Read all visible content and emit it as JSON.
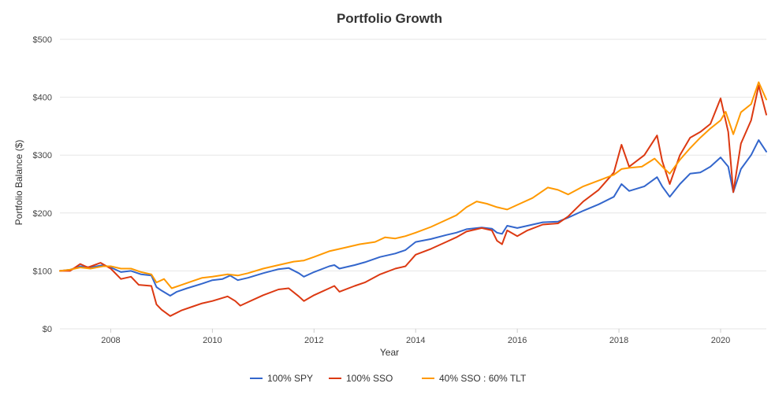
{
  "chart_data": {
    "type": "line",
    "title": "Portfolio Growth",
    "xlabel": "Year",
    "ylabel": "Portfolio Balance ($)",
    "xlim": [
      2007.0,
      2020.9
    ],
    "ylim": [
      0,
      500
    ],
    "x_ticks": [
      2008,
      2010,
      2012,
      2014,
      2016,
      2018,
      2020
    ],
    "x_tick_labels": [
      "2008",
      "2010",
      "2012",
      "2014",
      "2016",
      "2018",
      "2020"
    ],
    "y_ticks": [
      0,
      100,
      200,
      300,
      400,
      500
    ],
    "y_tick_labels": [
      "$0",
      "$100",
      "$200",
      "$300",
      "$400",
      "$500"
    ],
    "grid": true,
    "legend_position": "bottom",
    "series": [
      {
        "name": "100% SPY",
        "color": "#3366cc",
        "points": [
          [
            2007.0,
            100
          ],
          [
            2007.2,
            102
          ],
          [
            2007.4,
            108
          ],
          [
            2007.6,
            106
          ],
          [
            2007.85,
            110
          ],
          [
            2008.0,
            106
          ],
          [
            2008.2,
            98
          ],
          [
            2008.4,
            100
          ],
          [
            2008.6,
            94
          ],
          [
            2008.8,
            92
          ],
          [
            2008.9,
            72
          ],
          [
            2009.0,
            66
          ],
          [
            2009.17,
            57
          ],
          [
            2009.3,
            64
          ],
          [
            2009.5,
            70
          ],
          [
            2009.8,
            78
          ],
          [
            2010.0,
            84
          ],
          [
            2010.2,
            86
          ],
          [
            2010.35,
            92
          ],
          [
            2010.5,
            84
          ],
          [
            2010.7,
            88
          ],
          [
            2011.0,
            96
          ],
          [
            2011.3,
            103
          ],
          [
            2011.5,
            105
          ],
          [
            2011.7,
            96
          ],
          [
            2011.8,
            90
          ],
          [
            2012.0,
            98
          ],
          [
            2012.3,
            108
          ],
          [
            2012.4,
            110
          ],
          [
            2012.5,
            104
          ],
          [
            2012.8,
            110
          ],
          [
            2013.0,
            115
          ],
          [
            2013.3,
            124
          ],
          [
            2013.6,
            130
          ],
          [
            2013.8,
            136
          ],
          [
            2014.0,
            150
          ],
          [
            2014.3,
            155
          ],
          [
            2014.6,
            162
          ],
          [
            2014.8,
            166
          ],
          [
            2015.0,
            172
          ],
          [
            2015.3,
            175
          ],
          [
            2015.5,
            173
          ],
          [
            2015.6,
            166
          ],
          [
            2015.7,
            164
          ],
          [
            2015.8,
            178
          ],
          [
            2016.0,
            174
          ],
          [
            2016.2,
            178
          ],
          [
            2016.5,
            184
          ],
          [
            2016.8,
            185
          ],
          [
            2017.0,
            192
          ],
          [
            2017.3,
            204
          ],
          [
            2017.6,
            215
          ],
          [
            2017.9,
            228
          ],
          [
            2018.05,
            250
          ],
          [
            2018.2,
            238
          ],
          [
            2018.5,
            246
          ],
          [
            2018.75,
            262
          ],
          [
            2018.85,
            246
          ],
          [
            2019.0,
            228
          ],
          [
            2019.2,
            250
          ],
          [
            2019.4,
            268
          ],
          [
            2019.6,
            270
          ],
          [
            2019.8,
            280
          ],
          [
            2020.0,
            296
          ],
          [
            2020.15,
            280
          ],
          [
            2020.25,
            236
          ],
          [
            2020.4,
            276
          ],
          [
            2020.6,
            300
          ],
          [
            2020.75,
            326
          ],
          [
            2020.9,
            306
          ]
        ]
      },
      {
        "name": "100% SSO",
        "color": "#dc3912",
        "points": [
          [
            2007.0,
            100
          ],
          [
            2007.2,
            100
          ],
          [
            2007.4,
            112
          ],
          [
            2007.55,
            106
          ],
          [
            2007.8,
            114
          ],
          [
            2008.0,
            104
          ],
          [
            2008.2,
            86
          ],
          [
            2008.4,
            90
          ],
          [
            2008.55,
            76
          ],
          [
            2008.8,
            74
          ],
          [
            2008.9,
            42
          ],
          [
            2009.0,
            33
          ],
          [
            2009.17,
            22
          ],
          [
            2009.4,
            32
          ],
          [
            2009.6,
            38
          ],
          [
            2009.8,
            44
          ],
          [
            2010.0,
            48
          ],
          [
            2010.3,
            56
          ],
          [
            2010.45,
            48
          ],
          [
            2010.55,
            40
          ],
          [
            2010.7,
            46
          ],
          [
            2011.0,
            58
          ],
          [
            2011.3,
            68
          ],
          [
            2011.5,
            70
          ],
          [
            2011.7,
            56
          ],
          [
            2011.8,
            48
          ],
          [
            2012.0,
            58
          ],
          [
            2012.3,
            70
          ],
          [
            2012.4,
            74
          ],
          [
            2012.5,
            64
          ],
          [
            2012.8,
            74
          ],
          [
            2013.0,
            80
          ],
          [
            2013.3,
            94
          ],
          [
            2013.6,
            104
          ],
          [
            2013.8,
            108
          ],
          [
            2014.0,
            128
          ],
          [
            2014.3,
            138
          ],
          [
            2014.6,
            150
          ],
          [
            2014.8,
            158
          ],
          [
            2015.0,
            168
          ],
          [
            2015.3,
            174
          ],
          [
            2015.5,
            170
          ],
          [
            2015.6,
            152
          ],
          [
            2015.7,
            146
          ],
          [
            2015.8,
            170
          ],
          [
            2016.0,
            160
          ],
          [
            2016.2,
            170
          ],
          [
            2016.5,
            180
          ],
          [
            2016.8,
            182
          ],
          [
            2017.0,
            194
          ],
          [
            2017.3,
            220
          ],
          [
            2017.6,
            240
          ],
          [
            2017.9,
            270
          ],
          [
            2018.05,
            318
          ],
          [
            2018.2,
            280
          ],
          [
            2018.5,
            300
          ],
          [
            2018.75,
            334
          ],
          [
            2018.85,
            290
          ],
          [
            2019.0,
            250
          ],
          [
            2019.2,
            300
          ],
          [
            2019.4,
            330
          ],
          [
            2019.6,
            340
          ],
          [
            2019.8,
            354
          ],
          [
            2020.0,
            398
          ],
          [
            2020.15,
            340
          ],
          [
            2020.25,
            236
          ],
          [
            2020.4,
            320
          ],
          [
            2020.6,
            360
          ],
          [
            2020.75,
            420
          ],
          [
            2020.9,
            370
          ]
        ]
      },
      {
        "name": "40% SSO : 60% TLT",
        "color": "#ff9900",
        "points": [
          [
            2007.0,
            100
          ],
          [
            2007.2,
            102
          ],
          [
            2007.4,
            106
          ],
          [
            2007.6,
            104
          ],
          [
            2007.85,
            108
          ],
          [
            2008.0,
            108
          ],
          [
            2008.2,
            104
          ],
          [
            2008.4,
            104
          ],
          [
            2008.6,
            98
          ],
          [
            2008.8,
            94
          ],
          [
            2008.9,
            80
          ],
          [
            2009.05,
            86
          ],
          [
            2009.2,
            70
          ],
          [
            2009.4,
            76
          ],
          [
            2009.6,
            82
          ],
          [
            2009.8,
            88
          ],
          [
            2010.0,
            90
          ],
          [
            2010.3,
            94
          ],
          [
            2010.5,
            92
          ],
          [
            2010.7,
            96
          ],
          [
            2011.0,
            104
          ],
          [
            2011.3,
            110
          ],
          [
            2011.6,
            116
          ],
          [
            2011.8,
            118
          ],
          [
            2012.0,
            124
          ],
          [
            2012.3,
            134
          ],
          [
            2012.6,
            140
          ],
          [
            2012.9,
            146
          ],
          [
            2013.2,
            150
          ],
          [
            2013.4,
            158
          ],
          [
            2013.6,
            156
          ],
          [
            2013.8,
            160
          ],
          [
            2014.0,
            166
          ],
          [
            2014.3,
            176
          ],
          [
            2014.6,
            188
          ],
          [
            2014.8,
            196
          ],
          [
            2015.0,
            210
          ],
          [
            2015.2,
            220
          ],
          [
            2015.4,
            216
          ],
          [
            2015.6,
            210
          ],
          [
            2015.8,
            206
          ],
          [
            2016.0,
            214
          ],
          [
            2016.3,
            226
          ],
          [
            2016.6,
            244
          ],
          [
            2016.8,
            240
          ],
          [
            2017.0,
            232
          ],
          [
            2017.3,
            246
          ],
          [
            2017.6,
            256
          ],
          [
            2017.9,
            266
          ],
          [
            2018.05,
            276
          ],
          [
            2018.2,
            278
          ],
          [
            2018.45,
            280
          ],
          [
            2018.7,
            294
          ],
          [
            2018.9,
            276
          ],
          [
            2019.0,
            268
          ],
          [
            2019.2,
            292
          ],
          [
            2019.4,
            312
          ],
          [
            2019.6,
            330
          ],
          [
            2019.8,
            346
          ],
          [
            2020.0,
            360
          ],
          [
            2020.1,
            375
          ],
          [
            2020.25,
            336
          ],
          [
            2020.4,
            374
          ],
          [
            2020.6,
            388
          ],
          [
            2020.75,
            426
          ],
          [
            2020.9,
            396
          ]
        ]
      }
    ]
  }
}
